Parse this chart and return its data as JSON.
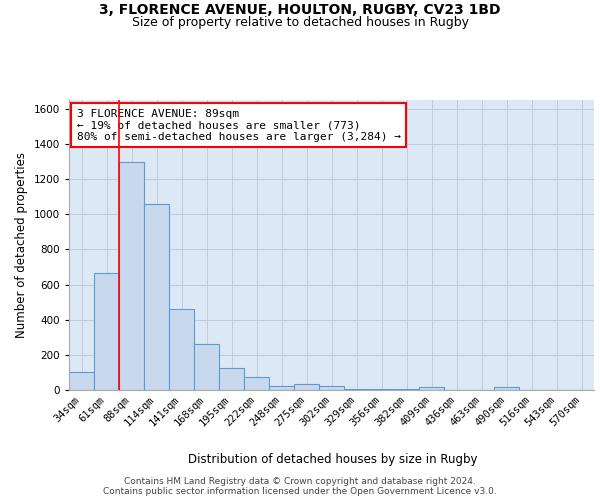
{
  "title_line1": "3, FLORENCE AVENUE, HOULTON, RUGBY, CV23 1BD",
  "title_line2": "Size of property relative to detached houses in Rugby",
  "xlabel": "Distribution of detached houses by size in Rugby",
  "ylabel": "Number of detached properties",
  "bin_labels": [
    "34sqm",
    "61sqm",
    "88sqm",
    "114sqm",
    "141sqm",
    "168sqm",
    "195sqm",
    "222sqm",
    "248sqm",
    "275sqm",
    "302sqm",
    "329sqm",
    "356sqm",
    "382sqm",
    "409sqm",
    "436sqm",
    "463sqm",
    "490sqm",
    "516sqm",
    "543sqm",
    "570sqm"
  ],
  "bar_heights": [
    100,
    665,
    1300,
    1060,
    460,
    262,
    128,
    72,
    25,
    32,
    25,
    8,
    8,
    8,
    18,
    0,
    0,
    18,
    0,
    0,
    0
  ],
  "bar_color": "#c9d9ed",
  "bar_edge_color": "#5b9bd5",
  "grid_color": "#c0ccdd",
  "bg_color": "#dde8f5",
  "annotation_text": "3 FLORENCE AVENUE: 89sqm\n← 19% of detached houses are smaller (773)\n80% of semi-detached houses are larger (3,284) →",
  "annotation_box_color": "white",
  "annotation_box_edge": "red",
  "property_line_color": "red",
  "property_bin_index": 2,
  "ylim": [
    0,
    1650
  ],
  "yticks": [
    0,
    200,
    400,
    600,
    800,
    1000,
    1200,
    1400,
    1600
  ],
  "footnote": "Contains HM Land Registry data © Crown copyright and database right 2024.\nContains public sector information licensed under the Open Government Licence v3.0.",
  "title_fontsize": 10,
  "subtitle_fontsize": 9,
  "axis_label_fontsize": 8.5,
  "tick_fontsize": 7.5,
  "annotation_fontsize": 8,
  "footnote_fontsize": 6.5
}
